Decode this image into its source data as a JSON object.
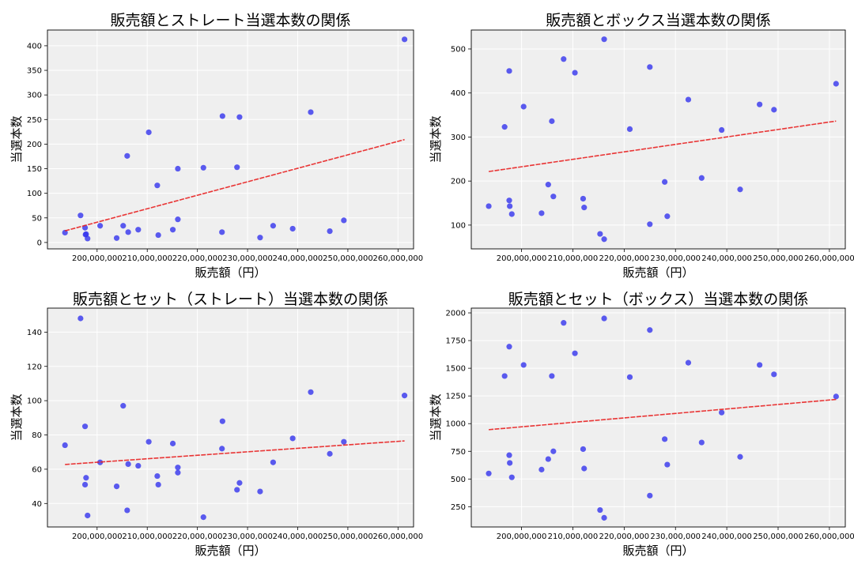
{
  "chart_data": [
    {
      "type": "scatter",
      "title": "販売額とストレート当選本数の関係",
      "xlabel": "販売額（円）",
      "ylabel": "当選本数",
      "xlim": [
        190100000,
        263100000
      ],
      "ylim": [
        -13,
        432
      ],
      "xticks": [
        200000000,
        210000000,
        220000000,
        230000000,
        240000000,
        250000000,
        260000000
      ],
      "yticks": [
        0,
        50,
        100,
        150,
        200,
        250,
        300,
        350,
        400
      ],
      "grid": true,
      "trendline": true,
      "points": [
        [
          193.6,
          20
        ],
        [
          196.7,
          55
        ],
        [
          197.6,
          30
        ],
        [
          197.7,
          16
        ],
        [
          197.8,
          17
        ],
        [
          198.1,
          8
        ],
        [
          200.6,
          34
        ],
        [
          203.9,
          9
        ],
        [
          205.2,
          34
        ],
        [
          206.0,
          176
        ],
        [
          206.2,
          21
        ],
        [
          208.2,
          26
        ],
        [
          210.3,
          224
        ],
        [
          212.0,
          116
        ],
        [
          212.2,
          15
        ],
        [
          215.1,
          26
        ],
        [
          216.1,
          150
        ],
        [
          216.1,
          47
        ],
        [
          221.2,
          152
        ],
        [
          224.9,
          21
        ],
        [
          225.0,
          257
        ],
        [
          227.9,
          153
        ],
        [
          228.4,
          255
        ],
        [
          232.5,
          10
        ],
        [
          235.1,
          34
        ],
        [
          239.0,
          28
        ],
        [
          242.6,
          265
        ],
        [
          246.4,
          23
        ],
        [
          249.2,
          45
        ],
        [
          261.3,
          413
        ]
      ]
    },
    {
      "type": "scatter",
      "title": "販売額とボックス当選本数の関係",
      "xlabel": "販売額（円）",
      "ylabel": "当選本数",
      "xlim": [
        190200000,
        263100000
      ],
      "ylim": [
        46,
        543
      ],
      "xticks": [
        200000000,
        210000000,
        220000000,
        230000000,
        240000000,
        250000000,
        260000000
      ],
      "yticks": [
        100,
        200,
        300,
        400,
        500
      ],
      "grid": true,
      "trendline": true,
      "points": [
        [
          193.6,
          143
        ],
        [
          196.7,
          323
        ],
        [
          197.6,
          450
        ],
        [
          197.6,
          156
        ],
        [
          197.7,
          143
        ],
        [
          198.1,
          125
        ],
        [
          200.4,
          369
        ],
        [
          203.9,
          127
        ],
        [
          205.2,
          192
        ],
        [
          205.9,
          336
        ],
        [
          206.2,
          165
        ],
        [
          208.2,
          477
        ],
        [
          210.4,
          446
        ],
        [
          212.0,
          160
        ],
        [
          212.2,
          140
        ],
        [
          215.3,
          80
        ],
        [
          216.1,
          522
        ],
        [
          216.1,
          68
        ],
        [
          221.1,
          318
        ],
        [
          225.0,
          459
        ],
        [
          225.0,
          102
        ],
        [
          227.9,
          198
        ],
        [
          228.4,
          120
        ],
        [
          232.5,
          385
        ],
        [
          235.1,
          207
        ],
        [
          239.0,
          316
        ],
        [
          242.6,
          181
        ],
        [
          246.4,
          374
        ],
        [
          249.2,
          362
        ],
        [
          261.3,
          421
        ]
      ]
    },
    {
      "type": "scatter",
      "title": "販売額とセット（ストレート）当選本数の関係",
      "xlabel": "販売額（円）",
      "ylabel": "当選本数",
      "xlim": [
        190100000,
        263100000
      ],
      "ylim": [
        26.3,
        154
      ],
      "xticks": [
        200000000,
        210000000,
        220000000,
        230000000,
        240000000,
        250000000,
        260000000
      ],
      "yticks": [
        40,
        60,
        80,
        100,
        120,
        140
      ],
      "grid": true,
      "trendline": true,
      "points": [
        [
          193.6,
          74
        ],
        [
          196.7,
          148
        ],
        [
          197.6,
          85
        ],
        [
          197.8,
          55
        ],
        [
          197.6,
          51
        ],
        [
          198.1,
          33
        ],
        [
          200.6,
          64
        ],
        [
          203.9,
          50
        ],
        [
          205.2,
          97
        ],
        [
          206.0,
          36
        ],
        [
          206.2,
          63
        ],
        [
          208.2,
          62
        ],
        [
          210.3,
          76
        ],
        [
          212.0,
          56
        ],
        [
          212.2,
          51
        ],
        [
          215.1,
          75
        ],
        [
          216.1,
          61
        ],
        [
          216.1,
          58
        ],
        [
          221.2,
          32
        ],
        [
          224.9,
          72
        ],
        [
          225.0,
          88
        ],
        [
          227.9,
          48
        ],
        [
          228.4,
          52
        ],
        [
          232.5,
          47
        ],
        [
          235.1,
          64
        ],
        [
          239.0,
          78
        ],
        [
          242.6,
          105
        ],
        [
          246.4,
          69
        ],
        [
          249.2,
          76
        ],
        [
          261.3,
          103
        ]
      ]
    },
    {
      "type": "scatter",
      "title": "販売額とセット（ボックス）当選本数の関係",
      "xlabel": "販売額（円）",
      "ylabel": "当選本数",
      "xlim": [
        190200000,
        263100000
      ],
      "ylim": [
        67,
        2043
      ],
      "xticks": [
        200000000,
        210000000,
        220000000,
        230000000,
        240000000,
        250000000,
        260000000
      ],
      "yticks": [
        250,
        500,
        750,
        1000,
        1250,
        1500,
        1750,
        2000
      ],
      "grid": true,
      "trendline": true,
      "points": [
        [
          193.6,
          550
        ],
        [
          196.7,
          1430
        ],
        [
          197.6,
          1695
        ],
        [
          197.6,
          715
        ],
        [
          197.7,
          645
        ],
        [
          198.1,
          515
        ],
        [
          200.4,
          1530
        ],
        [
          203.9,
          585
        ],
        [
          205.2,
          680
        ],
        [
          205.9,
          1430
        ],
        [
          206.2,
          750
        ],
        [
          208.2,
          1910
        ],
        [
          210.4,
          1635
        ],
        [
          212.0,
          770
        ],
        [
          212.2,
          595
        ],
        [
          215.3,
          220
        ],
        [
          216.1,
          1950
        ],
        [
          216.1,
          150
        ],
        [
          221.1,
          1420
        ],
        [
          225.0,
          1845
        ],
        [
          225.0,
          350
        ],
        [
          227.9,
          860
        ],
        [
          228.4,
          630
        ],
        [
          232.5,
          1550
        ],
        [
          235.1,
          830
        ],
        [
          239.0,
          1100
        ],
        [
          242.6,
          700
        ],
        [
          246.4,
          1530
        ],
        [
          249.2,
          1445
        ],
        [
          261.3,
          1245
        ]
      ]
    }
  ],
  "colors": {
    "points": "#3333ee",
    "trendline": "#e82020",
    "plot_bg": "#efefef",
    "grid": "#ffffff"
  }
}
